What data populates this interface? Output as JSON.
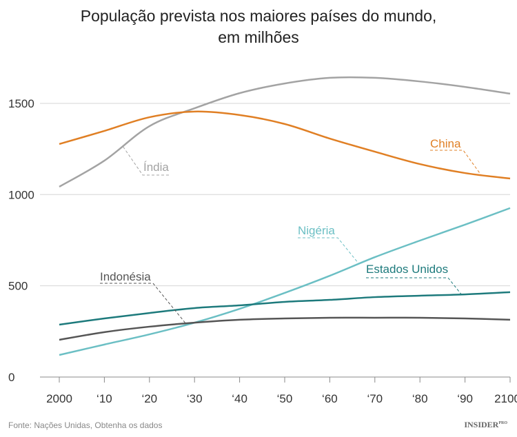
{
  "chart_data": {
    "type": "line",
    "title": "População prevista nos maiores países do mundo, em milhões",
    "title_lines": [
      "População prevista nos maiores países do mundo,",
      "em milhões"
    ],
    "x": [
      2000,
      2010,
      2020,
      2030,
      2040,
      2050,
      2060,
      2070,
      2080,
      2090,
      2100
    ],
    "x_tick_labels": [
      "2000",
      "‘10",
      "‘20",
      "‘30",
      "‘40",
      "‘50",
      "‘60",
      "‘70",
      "‘80",
      "‘90",
      "2100"
    ],
    "y_ticks": [
      0,
      500,
      1000,
      1500
    ],
    "y_tick_labels": [
      "0",
      "500",
      "1000",
      "1500"
    ],
    "xlim": [
      2000,
      2100
    ],
    "ylim": [
      0,
      1700
    ],
    "grid": "horizontal",
    "series": [
      {
        "name": "Índia",
        "color": "#a3a3a3",
        "values": [
          1043,
          1186,
          1375,
          1473,
          1556,
          1609,
          1640,
          1640,
          1620,
          1590,
          1553
        ]
      },
      {
        "name": "China",
        "color": "#e07f24",
        "values": [
          1277,
          1349,
          1424,
          1455,
          1436,
          1387,
          1307,
          1235,
          1167,
          1118,
          1088
        ]
      },
      {
        "name": "Nigéria",
        "color": "#6bbfc4",
        "values": [
          121,
          178,
          234,
          298,
          374,
          461,
          555,
          657,
          748,
          835,
          926
        ]
      },
      {
        "name": "Estados Unidos",
        "color": "#1d7a7c",
        "values": [
          287,
          321,
          351,
          378,
          393,
          412,
          423,
          438,
          446,
          453,
          465
        ]
      },
      {
        "name": "Indonésia",
        "color": "#555555",
        "values": [
          204,
          246,
          276,
          298,
          314,
          321,
          325,
          325,
          325,
          321,
          314
        ]
      }
    ]
  },
  "footer": {
    "source": "Fonte: Nações Unidas, Obtenha os dados",
    "logo": "INSIDER",
    "logo_sup": "PRO"
  }
}
